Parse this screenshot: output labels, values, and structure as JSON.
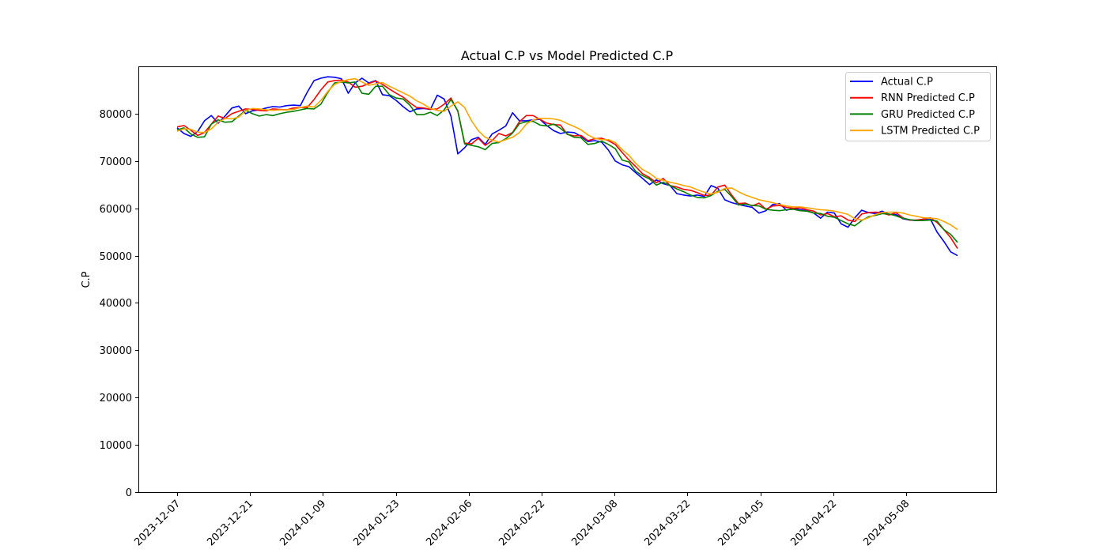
{
  "chart_data": {
    "type": "line",
    "title": "Actual C.P vs Model Predicted C.P",
    "xlabel": "",
    "ylabel": "C.P",
    "ylim": [
      0,
      90000
    ],
    "yticks": [
      0,
      10000,
      20000,
      30000,
      40000,
      50000,
      60000,
      70000,
      80000
    ],
    "xticks": [
      "2023-12-07",
      "2023-12-21",
      "2024-01-09",
      "2024-01-23",
      "2024-02-06",
      "2024-02-22",
      "2024-03-08",
      "2024-03-22",
      "2024-04-05",
      "2024-04-22",
      "2024-05-08"
    ],
    "grid": false,
    "legend_position": "top-right",
    "colors": {
      "actual": "#0000ff",
      "rnn": "#ff0000",
      "gru": "#008000",
      "lstm": "#ffa500"
    },
    "series": [
      {
        "key": "actual",
        "name": "Actual C.P",
        "color": "#0000ff",
        "values": [
          77000,
          75800,
          75200,
          76200,
          78500,
          79600,
          78000,
          79500,
          81200,
          81600,
          80000,
          80600,
          80800,
          81200,
          81500,
          81400,
          81700,
          81800,
          81700,
          84500,
          87000,
          87500,
          87800,
          87700,
          87400,
          84300,
          86500,
          87500,
          86500,
          87000,
          84000,
          83800,
          82800,
          81500,
          80400,
          81000,
          81100,
          80900,
          83900,
          83100,
          79500,
          71500,
          72800,
          74500,
          75000,
          73500,
          75700,
          76500,
          77400,
          80200,
          78500,
          78500,
          78700,
          78800,
          77500,
          76400,
          75800,
          76100,
          76000,
          75200,
          74100,
          74300,
          74000,
          72300,
          70000,
          69200,
          68800,
          67500,
          66300,
          65000,
          66000,
          65200,
          64800,
          63100,
          62800,
          62600,
          62800,
          62500,
          64800,
          64200,
          61800,
          61200,
          60800,
          60500,
          60200,
          59000,
          59500,
          60800,
          61000,
          59600,
          60000,
          59700,
          59500,
          59000,
          57900,
          59200,
          59000,
          56700,
          56000,
          58000,
          59600,
          59100,
          58900,
          59400,
          58700,
          58700,
          57800,
          57500,
          57400,
          57700,
          57800,
          55000,
          53000,
          50800,
          50000
        ]
      },
      {
        "key": "rnn",
        "name": "RNN Predicted C.P",
        "color": "#ff0000",
        "values": [
          77200,
          77500,
          76500,
          75400,
          76000,
          77800,
          79500,
          79000,
          80000,
          80500,
          81000,
          80900,
          80700,
          80600,
          81000,
          80900,
          80800,
          81200,
          81300,
          81300,
          83000,
          85000,
          86700,
          87000,
          87100,
          86700,
          85600,
          85800,
          86400,
          86900,
          86200,
          85200,
          84300,
          83500,
          82300,
          81300,
          81200,
          80900,
          81000,
          82000,
          83300,
          80500,
          73800,
          73600,
          74800,
          73300,
          74300,
          75800,
          75300,
          76000,
          78300,
          79600,
          79600,
          78800,
          78000,
          77700,
          77600,
          75600,
          75300,
          75400,
          74300,
          74700,
          74800,
          74300,
          73500,
          71800,
          70200,
          68800,
          67300,
          66500,
          65400,
          66300,
          64800,
          64500,
          64000,
          63800,
          63300,
          62700,
          62800,
          64500,
          64900,
          62800,
          61000,
          61100,
          60500,
          61100,
          59800,
          60500,
          60600,
          60200,
          60000,
          60100,
          59700,
          59400,
          58600,
          58900,
          58200,
          58400,
          57500,
          57200,
          58800,
          59100,
          59200,
          59000,
          58600,
          59100,
          58000,
          57500,
          57500,
          57700,
          58000,
          57000,
          55500,
          53800,
          51500
        ]
      },
      {
        "key": "gru",
        "name": "GRU Predicted C.P",
        "color": "#008000",
        "values": [
          76600,
          77000,
          75700,
          75000,
          75100,
          77800,
          78700,
          78200,
          78300,
          79500,
          80700,
          80000,
          79500,
          79800,
          79600,
          80000,
          80300,
          80500,
          80800,
          81100,
          81000,
          82000,
          84500,
          86500,
          86700,
          86500,
          86700,
          84300,
          84100,
          85800,
          85800,
          84000,
          83300,
          83100,
          81800,
          79800,
          79800,
          80300,
          79600,
          80800,
          83000,
          80600,
          73600,
          73300,
          73000,
          72400,
          73700,
          73900,
          74700,
          75900,
          77900,
          78300,
          78400,
          77600,
          77400,
          77800,
          76900,
          75700,
          75000,
          74900,
          73500,
          73700,
          74200,
          73500,
          72600,
          70200,
          69800,
          67800,
          66900,
          66200,
          64900,
          65500,
          64800,
          64100,
          63500,
          62800,
          62300,
          62200,
          62700,
          63600,
          64000,
          62500,
          60700,
          60900,
          60600,
          60500,
          59800,
          59600,
          59500,
          59700,
          59800,
          59500,
          59400,
          59000,
          58900,
          58300,
          58100,
          57400,
          56700,
          56300,
          57400,
          58200,
          58500,
          58900,
          58800,
          58400,
          57900,
          57600,
          57400,
          57400,
          57500,
          57300,
          55500,
          54500,
          52800
        ]
      },
      {
        "key": "lstm",
        "name": "LSTM Predicted C.P",
        "color": "#ffa500",
        "values": [
          76300,
          76800,
          76700,
          76100,
          76000,
          76800,
          78200,
          79000,
          78900,
          79300,
          80600,
          81100,
          81000,
          80800,
          80700,
          80800,
          80800,
          80900,
          81300,
          81600,
          81400,
          82800,
          84700,
          86200,
          86800,
          87200,
          87400,
          86700,
          86000,
          86300,
          86600,
          85800,
          85100,
          84400,
          83700,
          82700,
          82000,
          81100,
          80700,
          80500,
          81600,
          82500,
          81300,
          78500,
          76400,
          75000,
          74400,
          74000,
          74500,
          75000,
          76000,
          77800,
          78700,
          79000,
          79000,
          78900,
          78600,
          77900,
          77300,
          76600,
          75500,
          74800,
          74500,
          74500,
          73900,
          72400,
          71200,
          69500,
          68200,
          67400,
          66300,
          65900,
          65500,
          65200,
          64800,
          64500,
          63900,
          63400,
          63000,
          63400,
          64200,
          64300,
          63500,
          62800,
          62300,
          61800,
          61500,
          61200,
          60800,
          60500,
          60300,
          60300,
          60100,
          59900,
          59700,
          59600,
          59400,
          59100,
          58700,
          57800,
          57500,
          58000,
          58700,
          59100,
          59200,
          59200,
          59000,
          58600,
          58300,
          58000,
          57900,
          57800,
          57200,
          56500,
          55500
        ]
      }
    ]
  }
}
